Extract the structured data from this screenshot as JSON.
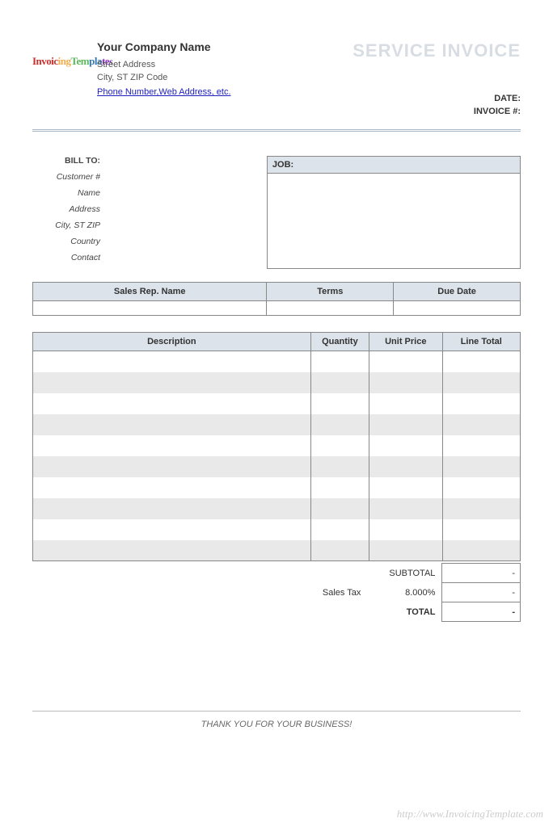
{
  "brand": {
    "part1": "Invoic",
    "part2": "ing",
    "part3": "Tem",
    "part4": "pla",
    "part5": "te",
    "part6": "s"
  },
  "company": {
    "name": "Your Company Name",
    "street": "Street Address",
    "city": "City, ST ZIP Code",
    "contact_link": "Phone Number,Web Address, etc."
  },
  "title": "SERVICE INVOICE",
  "meta": {
    "date_label": "DATE:",
    "invoice_label": "INVOICE #:"
  },
  "billto": {
    "heading": "BILL TO:",
    "customer": "Customer #",
    "name": "Name",
    "address": "Address",
    "cityzip": "City, ST ZIP",
    "country": "Country",
    "contact": "Contact"
  },
  "job": {
    "label": "JOB:"
  },
  "t3": {
    "salesrep": "Sales Rep. Name",
    "terms": "Terms",
    "due": "Due Date"
  },
  "items": {
    "headers": {
      "desc": "Description",
      "qty": "Quantity",
      "price": "Unit Price",
      "total": "Line Total"
    },
    "row_count": 10
  },
  "totals": {
    "subtotal_label": "SUBTOTAL",
    "salestax_label": "Sales Tax",
    "salestax_rate": "8.000%",
    "total_label": "TOTAL",
    "dash": "-"
  },
  "thanks": "THANK YOU FOR YOUR BUSINESS!",
  "watermark": "http://www.InvoicingTemplate.com",
  "colors": {
    "header_bg": "#dce3ea",
    "alt_row": "#e9e9e9",
    "border": "#888888",
    "title_color": "#d8dde3"
  }
}
